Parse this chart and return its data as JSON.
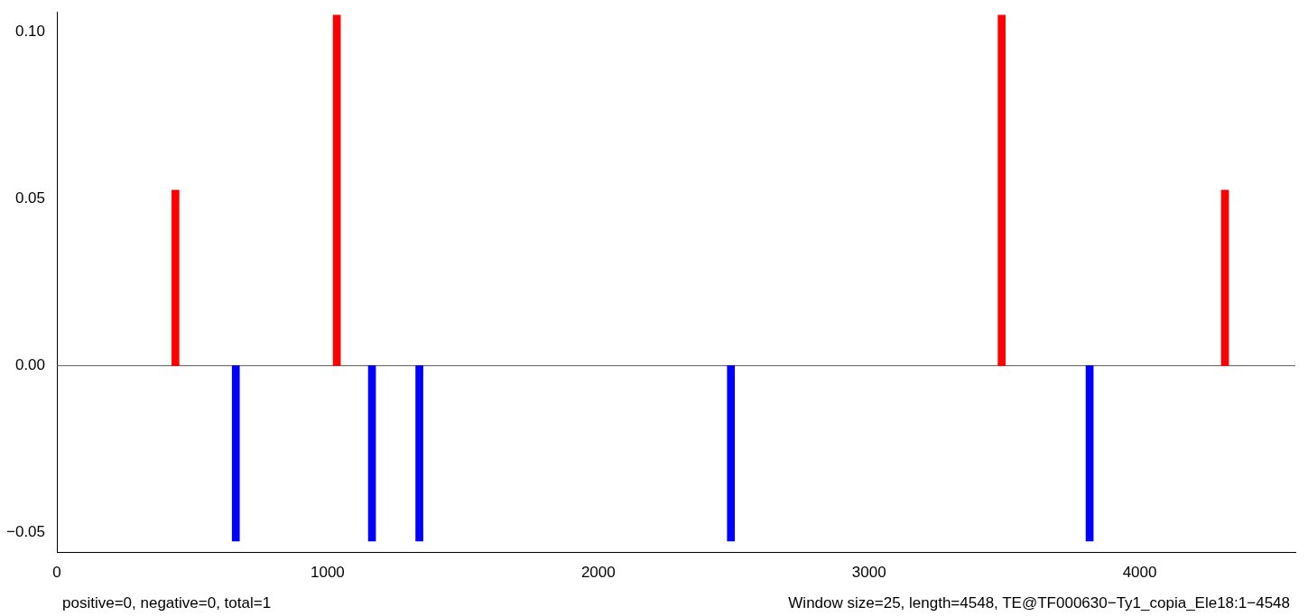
{
  "chart_data": {
    "type": "bar",
    "x": [
      438,
      661,
      1034,
      1164,
      1339,
      2490,
      3490,
      3815,
      4315
    ],
    "values": [
      0.0526,
      -0.0526,
      0.105,
      -0.0526,
      -0.0526,
      -0.0526,
      0.105,
      -0.0526,
      0.0526
    ],
    "colors": [
      "#ff0000",
      "#0000ff",
      "#ff0000",
      "#0000ff",
      "#0000ff",
      "#0000ff",
      "#ff0000",
      "#0000ff",
      "#ff0000"
    ],
    "xlim": [
      0,
      4575
    ],
    "xticks": [
      0,
      1000,
      2000,
      3000,
      4000
    ],
    "ylim": [
      -0.056,
      0.106
    ],
    "yticks": [
      {
        "value": -0.05,
        "label": "−0.05"
      },
      {
        "value": 0,
        "label": "0.00"
      },
      {
        "value": 0.05,
        "label": "0.05"
      },
      {
        "value": 0.1,
        "label": "0.10"
      }
    ],
    "ref_lines": [
      {
        "axis": "y",
        "value": 0,
        "color": "#555555"
      }
    ],
    "annotations": [
      "positive=0, negative=0, total=1",
      "Window size=25, length=4548, TE@TF000630−Ty1_copia_Ele18:1−4548"
    ],
    "grid": false,
    "legend": false
  }
}
